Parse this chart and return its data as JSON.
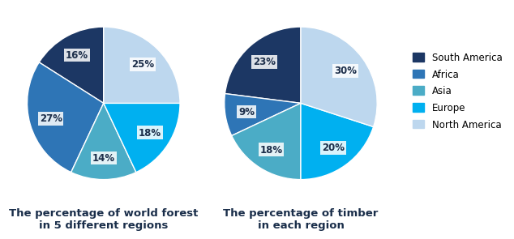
{
  "chart1_title": "The percentage of world forest\nin 5 different regions",
  "chart2_title": "The percentage of timber\nin each region",
  "regions": [
    "South America",
    "Africa",
    "Asia",
    "Europe",
    "North America"
  ],
  "colors": [
    "#1c3764",
    "#2e75b6",
    "#4bacc6",
    "#00b0f0",
    "#bdd7ee"
  ],
  "chart1_values": [
    16,
    27,
    14,
    18,
    25
  ],
  "chart2_values": [
    23,
    9,
    18,
    20,
    30
  ],
  "chart1_startangle": 90,
  "chart2_startangle": 90,
  "background_color": "#ffffff",
  "title_fontsize": 9.5,
  "label_fontsize": 8.5,
  "legend_fontsize": 8.5,
  "label_color": "#1c2e4a"
}
